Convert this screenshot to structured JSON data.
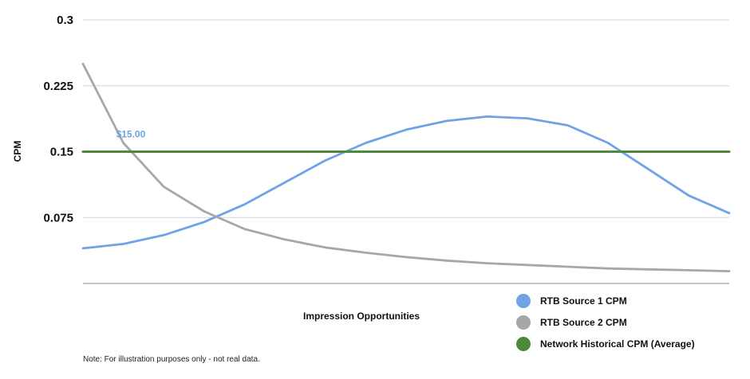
{
  "chart_data": {
    "type": "line",
    "title": "",
    "xlabel": "Impression Opportunities",
    "ylabel": "CPM",
    "ylim": [
      0,
      0.3
    ],
    "yticks": [
      0.075,
      0.15,
      0.225,
      0.3
    ],
    "ytick_labels": [
      "0.075",
      "0.15",
      "0.225",
      "0.3"
    ],
    "grid": true,
    "legend_position": "bottom-right",
    "x": [
      0,
      1,
      2,
      3,
      4,
      5,
      6,
      7,
      8,
      9,
      10,
      11,
      12,
      13,
      14,
      15,
      16
    ],
    "series": [
      {
        "name": "RTB Source 1 CPM",
        "color": "#6fa3e6",
        "values": [
          0.04,
          0.045,
          0.055,
          0.07,
          0.09,
          0.115,
          0.14,
          0.16,
          0.175,
          0.185,
          0.19,
          0.188,
          0.18,
          0.16,
          0.13,
          0.1,
          0.08
        ]
      },
      {
        "name": "RTB Source 2 CPM",
        "color": "#a7a7aa",
        "values": [
          0.25,
          0.16,
          0.11,
          0.082,
          0.062,
          0.05,
          0.041,
          0.035,
          0.03,
          0.026,
          0.023,
          0.021,
          0.019,
          0.017,
          0.016,
          0.015,
          0.014
        ]
      },
      {
        "name": "Network Historical CPM (Average)",
        "color": "#4e8a3c",
        "values": [
          0.15,
          0.15,
          0.15,
          0.15,
          0.15,
          0.15,
          0.15,
          0.15,
          0.15,
          0.15,
          0.15,
          0.15,
          0.15,
          0.15,
          0.15,
          0.15,
          0.15
        ]
      }
    ],
    "annotations": [
      {
        "text": "$15.00",
        "x": 0.9,
        "y": 0.17,
        "color": "#6fa3e6"
      }
    ],
    "note": "Note: For illustration purposes only - not real data."
  }
}
